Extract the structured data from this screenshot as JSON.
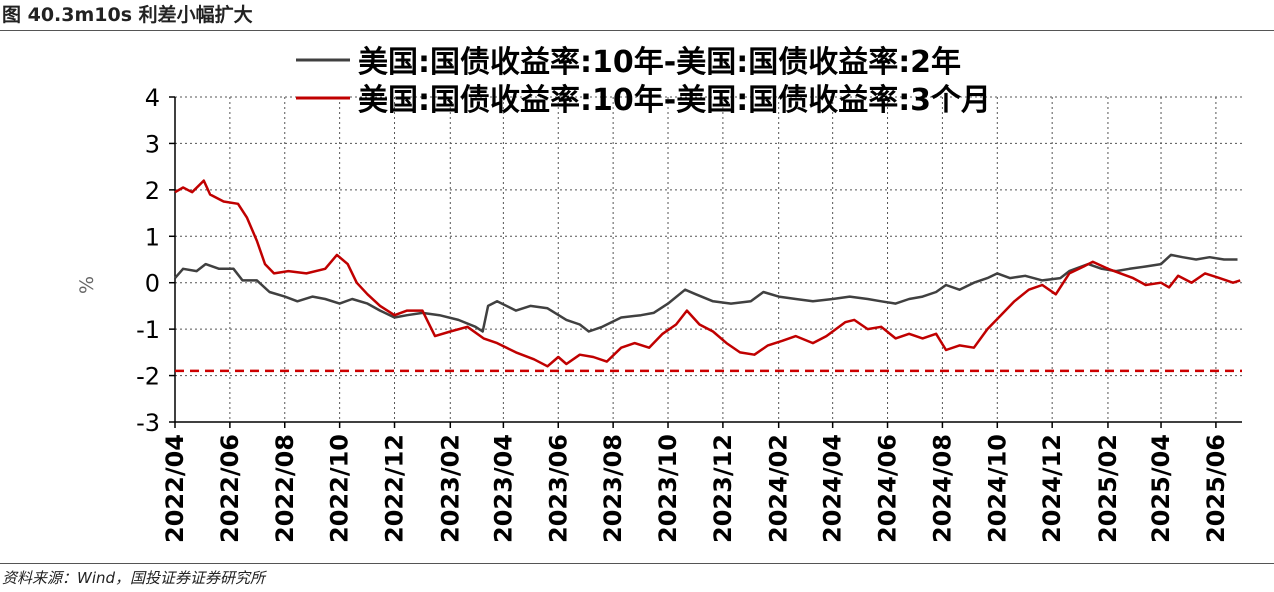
{
  "header": {
    "title": "图 40.3m10s 利差小幅扩大"
  },
  "footer": {
    "source": "资料来源：Wind，国投证券证券研究所"
  },
  "chart_data": {
    "type": "line",
    "title": "",
    "xlabel": "",
    "ylabel": "%",
    "ylim": [
      -3,
      4
    ],
    "xlim": [
      "2022-04-01",
      "2025-06-30"
    ],
    "y_ticks": [
      "4",
      "3",
      "2",
      "1",
      "0",
      "-1",
      "-2",
      "-3"
    ],
    "x_ticks": [
      "2022/04",
      "2022/06",
      "2022/08",
      "2022/10",
      "2022/12",
      "2023/02",
      "2023/04",
      "2023/06",
      "2023/08",
      "2023/10",
      "2023/12",
      "2024/02",
      "2024/04",
      "2024/06",
      "2024/08",
      "2024/10",
      "2024/12",
      "2025/02",
      "2025/04",
      "2025/06"
    ],
    "grid": true,
    "legend_position": "top",
    "reference_line": {
      "y": -1.9,
      "color": "#cc0000",
      "style": "dashed"
    },
    "series": [
      {
        "name": "美国:国债收益率:10年-美国:国债收益率:2年",
        "color": "#404040",
        "points": [
          [
            "2022-04-01",
            0.1
          ],
          [
            "2022-04-10",
            0.3
          ],
          [
            "2022-04-25",
            0.25
          ],
          [
            "2022-05-05",
            0.4
          ],
          [
            "2022-05-20",
            0.3
          ],
          [
            "2022-06-05",
            0.3
          ],
          [
            "2022-06-15",
            0.05
          ],
          [
            "2022-07-01",
            0.05
          ],
          [
            "2022-07-15",
            -0.2
          ],
          [
            "2022-08-01",
            -0.3
          ],
          [
            "2022-08-15",
            -0.4
          ],
          [
            "2022-09-01",
            -0.3
          ],
          [
            "2022-09-15",
            -0.35
          ],
          [
            "2022-10-01",
            -0.45
          ],
          [
            "2022-10-15",
            -0.35
          ],
          [
            "2022-11-01",
            -0.45
          ],
          [
            "2022-11-15",
            -0.6
          ],
          [
            "2022-12-01",
            -0.75
          ],
          [
            "2022-12-15",
            -0.7
          ],
          [
            "2023-01-01",
            -0.65
          ],
          [
            "2023-01-20",
            -0.7
          ],
          [
            "2023-02-10",
            -0.8
          ],
          [
            "2023-03-01",
            -0.95
          ],
          [
            "2023-03-09",
            -1.05
          ],
          [
            "2023-03-15",
            -0.5
          ],
          [
            "2023-03-25",
            -0.4
          ],
          [
            "2023-04-15",
            -0.6
          ],
          [
            "2023-05-01",
            -0.5
          ],
          [
            "2023-05-20",
            -0.55
          ],
          [
            "2023-06-10",
            -0.8
          ],
          [
            "2023-06-25",
            -0.9
          ],
          [
            "2023-07-05",
            -1.05
          ],
          [
            "2023-07-20",
            -0.95
          ],
          [
            "2023-08-10",
            -0.75
          ],
          [
            "2023-09-01",
            -0.7
          ],
          [
            "2023-09-15",
            -0.65
          ],
          [
            "2023-10-01",
            -0.45
          ],
          [
            "2023-10-20",
            -0.15
          ],
          [
            "2023-11-01",
            -0.25
          ],
          [
            "2023-11-20",
            -0.4
          ],
          [
            "2023-12-10",
            -0.45
          ],
          [
            "2024-01-01",
            -0.4
          ],
          [
            "2024-01-15",
            -0.2
          ],
          [
            "2024-02-01",
            -0.3
          ],
          [
            "2024-02-20",
            -0.35
          ],
          [
            "2024-03-10",
            -0.4
          ],
          [
            "2024-04-01",
            -0.35
          ],
          [
            "2024-04-20",
            -0.3
          ],
          [
            "2024-05-10",
            -0.35
          ],
          [
            "2024-05-25",
            -0.4
          ],
          [
            "2024-06-10",
            -0.45
          ],
          [
            "2024-06-25",
            -0.35
          ],
          [
            "2024-07-10",
            -0.3
          ],
          [
            "2024-07-25",
            -0.2
          ],
          [
            "2024-08-05",
            -0.05
          ],
          [
            "2024-08-20",
            -0.15
          ],
          [
            "2024-09-05",
            0.0
          ],
          [
            "2024-09-20",
            0.1
          ],
          [
            "2024-10-01",
            0.2
          ],
          [
            "2024-10-15",
            0.1
          ],
          [
            "2024-11-01",
            0.15
          ],
          [
            "2024-11-20",
            0.05
          ],
          [
            "2024-12-10",
            0.1
          ],
          [
            "2024-12-20",
            0.25
          ],
          [
            "2025-01-10",
            0.4
          ],
          [
            "2025-01-25",
            0.3
          ],
          [
            "2025-02-10",
            0.25
          ],
          [
            "2025-02-25",
            0.3
          ],
          [
            "2025-03-15",
            0.35
          ],
          [
            "2025-04-01",
            0.4
          ],
          [
            "2025-04-12",
            0.6
          ],
          [
            "2025-04-25",
            0.55
          ],
          [
            "2025-05-10",
            0.5
          ],
          [
            "2025-05-25",
            0.55
          ],
          [
            "2025-06-10",
            0.5
          ],
          [
            "2025-06-25",
            0.5
          ]
        ]
      },
      {
        "name": "美国:国债收益率:10年-美国:国债收益率:3个月",
        "color": "#c00000",
        "points": [
          [
            "2022-04-01",
            1.95
          ],
          [
            "2022-04-10",
            2.05
          ],
          [
            "2022-04-20",
            1.95
          ],
          [
            "2022-05-03",
            2.2
          ],
          [
            "2022-05-10",
            1.9
          ],
          [
            "2022-05-25",
            1.75
          ],
          [
            "2022-06-10",
            1.7
          ],
          [
            "2022-06-20",
            1.4
          ],
          [
            "2022-07-01",
            0.9
          ],
          [
            "2022-07-10",
            0.4
          ],
          [
            "2022-07-20",
            0.2
          ],
          [
            "2022-08-05",
            0.25
          ],
          [
            "2022-08-25",
            0.2
          ],
          [
            "2022-09-15",
            0.3
          ],
          [
            "2022-09-28",
            0.6
          ],
          [
            "2022-10-10",
            0.4
          ],
          [
            "2022-10-20",
            0.0
          ],
          [
            "2022-11-01",
            -0.25
          ],
          [
            "2022-11-15",
            -0.5
          ],
          [
            "2022-12-01",
            -0.7
          ],
          [
            "2022-12-15",
            -0.6
          ],
          [
            "2023-01-01",
            -0.6
          ],
          [
            "2023-01-15",
            -1.15
          ],
          [
            "2023-02-01",
            -1.05
          ],
          [
            "2023-02-20",
            -0.95
          ],
          [
            "2023-03-10",
            -1.2
          ],
          [
            "2023-03-25",
            -1.3
          ],
          [
            "2023-04-15",
            -1.5
          ],
          [
            "2023-05-05",
            -1.65
          ],
          [
            "2023-05-20",
            -1.8
          ],
          [
            "2023-06-01",
            -1.6
          ],
          [
            "2023-06-10",
            -1.75
          ],
          [
            "2023-06-25",
            -1.55
          ],
          [
            "2023-07-10",
            -1.6
          ],
          [
            "2023-07-25",
            -1.7
          ],
          [
            "2023-08-10",
            -1.4
          ],
          [
            "2023-08-25",
            -1.3
          ],
          [
            "2023-09-10",
            -1.4
          ],
          [
            "2023-09-25",
            -1.1
          ],
          [
            "2023-10-10",
            -0.9
          ],
          [
            "2023-10-22",
            -0.6
          ],
          [
            "2023-11-05",
            -0.9
          ],
          [
            "2023-11-20",
            -1.05
          ],
          [
            "2023-12-05",
            -1.3
          ],
          [
            "2023-12-20",
            -1.5
          ],
          [
            "2024-01-05",
            -1.55
          ],
          [
            "2024-01-20",
            -1.35
          ],
          [
            "2024-02-05",
            -1.25
          ],
          [
            "2024-02-20",
            -1.15
          ],
          [
            "2024-03-10",
            -1.3
          ],
          [
            "2024-03-25",
            -1.15
          ],
          [
            "2024-04-15",
            -0.85
          ],
          [
            "2024-04-25",
            -0.8
          ],
          [
            "2024-05-10",
            -1.0
          ],
          [
            "2024-05-25",
            -0.95
          ],
          [
            "2024-06-10",
            -1.2
          ],
          [
            "2024-06-25",
            -1.1
          ],
          [
            "2024-07-10",
            -1.2
          ],
          [
            "2024-07-25",
            -1.1
          ],
          [
            "2024-08-05",
            -1.45
          ],
          [
            "2024-08-20",
            -1.35
          ],
          [
            "2024-09-05",
            -1.4
          ],
          [
            "2024-09-20",
            -1.0
          ],
          [
            "2024-10-05",
            -0.7
          ],
          [
            "2024-10-20",
            -0.4
          ],
          [
            "2024-11-05",
            -0.15
          ],
          [
            "2024-11-20",
            -0.05
          ],
          [
            "2024-12-05",
            -0.25
          ],
          [
            "2024-12-20",
            0.2
          ],
          [
            "2025-01-05",
            0.35
          ],
          [
            "2025-01-15",
            0.45
          ],
          [
            "2025-02-01",
            0.3
          ],
          [
            "2025-02-15",
            0.2
          ],
          [
            "2025-03-01",
            0.1
          ],
          [
            "2025-03-15",
            -0.05
          ],
          [
            "2025-04-01",
            0.0
          ],
          [
            "2025-04-10",
            -0.1
          ],
          [
            "2025-04-20",
            0.15
          ],
          [
            "2025-05-05",
            0.0
          ],
          [
            "2025-05-20",
            0.2
          ],
          [
            "2025-06-05",
            0.1
          ],
          [
            "2025-06-20",
            0.0
          ],
          [
            "2025-06-28",
            0.05
          ]
        ]
      }
    ]
  }
}
